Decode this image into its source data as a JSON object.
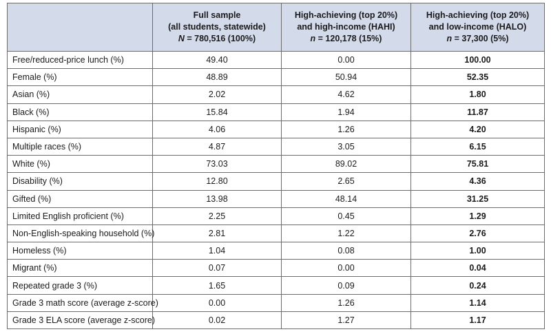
{
  "table": {
    "headers": [
      {
        "line1": "Full sample",
        "line2": "(all students, statewide)",
        "line3_var": "N",
        "line3_rest": " = 780,516 (100%)"
      },
      {
        "line1": "High-achieving (top 20%)",
        "line2": "and high-income (HAHI)",
        "line3_var": "n",
        "line3_rest": " = 120,178 (15%)"
      },
      {
        "line1": "High-achieving (top 20%)",
        "line2": "and low-income (HALO)",
        "line3_var": "n",
        "line3_rest": " = 37,300 (5%)"
      }
    ],
    "rows": [
      {
        "label": "Free/reduced-price lunch (%)",
        "full": "49.40",
        "hahi": "0.00",
        "halo": "100.00"
      },
      {
        "label": "Female (%)",
        "full": "48.89",
        "hahi": "50.94",
        "halo": "52.35"
      },
      {
        "label": "Asian (%)",
        "full": "2.02",
        "hahi": "4.62",
        "halo": "1.80"
      },
      {
        "label": "Black (%)",
        "full": "15.84",
        "hahi": "1.94",
        "halo": "11.87"
      },
      {
        "label": "Hispanic (%)",
        "full": "4.06",
        "hahi": "1.26",
        "halo": "4.20"
      },
      {
        "label": "Multiple races (%)",
        "full": "4.87",
        "hahi": "3.05",
        "halo": "6.15"
      },
      {
        "label": "White (%)",
        "full": "73.03",
        "hahi": "89.02",
        "halo": "75.81"
      },
      {
        "label": "Disability (%)",
        "full": "12.80",
        "hahi": "2.65",
        "halo": "4.36"
      },
      {
        "label": "Gifted (%)",
        "full": "13.98",
        "hahi": "48.14",
        "halo": "31.25"
      },
      {
        "label": "Limited English proficient (%)",
        "full": "2.25",
        "hahi": "0.45",
        "halo": "1.29"
      },
      {
        "label": "Non-English-speaking household (%)",
        "full": "2.81",
        "hahi": "1.22",
        "halo": "2.76"
      },
      {
        "label": "Homeless (%)",
        "full": "1.04",
        "hahi": "0.08",
        "halo": "1.00"
      },
      {
        "label": "Migrant (%)",
        "full": "0.07",
        "hahi": "0.00",
        "halo": "0.04"
      },
      {
        "label": "Repeated grade 3 (%)",
        "full": "1.65",
        "hahi": "0.09",
        "halo": "0.24"
      },
      {
        "label": "Grade 3 math score (average z-score)",
        "full": "0.00",
        "hahi": "1.26",
        "halo": "1.14"
      },
      {
        "label": "Grade 3 ELA score (average z-score)",
        "full": "0.02",
        "hahi": "1.27",
        "halo": "1.17"
      }
    ]
  },
  "colors": {
    "header_background": "#d3dbea",
    "border": "#6b6b6b"
  }
}
